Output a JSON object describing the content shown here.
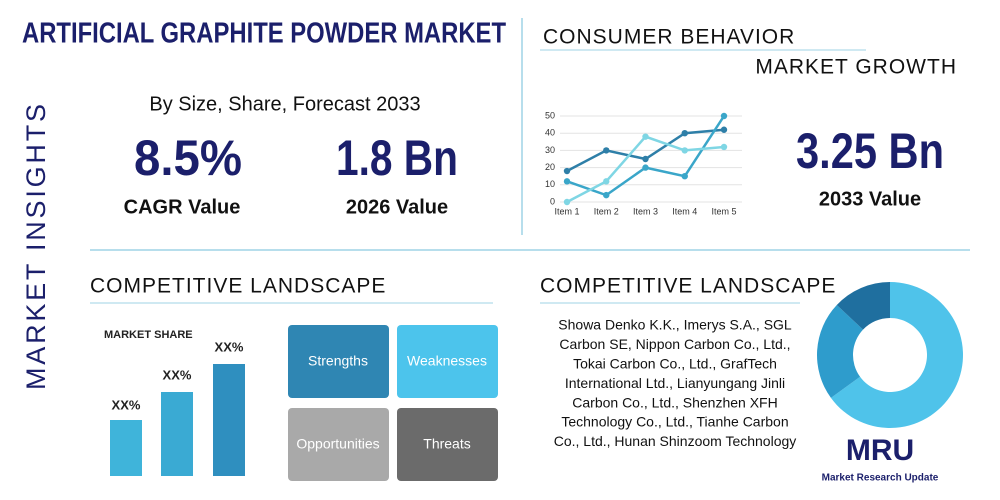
{
  "header": {
    "title": "ARTIFICIAL GRAPHITE POWDER MARKET",
    "side_label": "MARKET INSIGHTS",
    "subtitle": "By Size, Share, Forecast 2033"
  },
  "stats": [
    {
      "value": "8.5%",
      "label": "CAGR Value"
    },
    {
      "value": "1.8 Bn",
      "label": "2026 Value"
    },
    {
      "value": "3.25 Bn",
      "label": "2033 Value"
    }
  ],
  "consumer_behavior": {
    "title": "CONSUMER BEHAVIOR",
    "subtitle": "MARKET GROWTH"
  },
  "chart_data": [
    {
      "type": "line",
      "categories": [
        "Item 1",
        "Item 2",
        "Item 3",
        "Item 4",
        "Item 5"
      ],
      "series": [
        {
          "color": "#2e7fa8",
          "values": [
            18,
            30,
            25,
            40,
            42
          ]
        },
        {
          "color": "#3aa6c9",
          "values": [
            12,
            4,
            20,
            15,
            50
          ]
        },
        {
          "color": "#7fd6e4",
          "values": [
            0,
            12,
            38,
            30,
            32
          ]
        }
      ],
      "ylim": [
        0,
        50
      ],
      "yticks": [
        0,
        10,
        20,
        30,
        40,
        50
      ],
      "grid": true
    },
    {
      "type": "pie",
      "donut": true,
      "values": [
        65,
        22,
        13
      ],
      "colors": [
        "#4fc3ea",
        "#2e9ccc",
        "#1f6f9f"
      ]
    }
  ],
  "competitive_landscape": {
    "title": "COMPETITIVE LANDSCAPE",
    "market_share_label": "MARKET SHARE",
    "bar_labels": [
      "XX%",
      "XX%",
      "XX%"
    ],
    "swot": [
      "Strengths",
      "Weaknesses",
      "Opportunities",
      "Threats"
    ]
  },
  "companies": {
    "title": "COMPETITIVE LANDSCAPE",
    "lines": [
      "Showa Denko K.K., Imerys S.A., SGL",
      "Carbon SE, Nippon Carbon Co., Ltd.,",
      "Tokai Carbon Co., Ltd., GrafTech",
      "International Ltd., Lianyungang Jinli",
      "Carbon Co., Ltd., Shenzhen XFH",
      "Technology Co., Ltd., Tianhe Carbon",
      "Co., Ltd., Hunan Shinzoom Technology"
    ]
  },
  "logo": {
    "text": "MRU",
    "caption": "Market Research Update"
  }
}
